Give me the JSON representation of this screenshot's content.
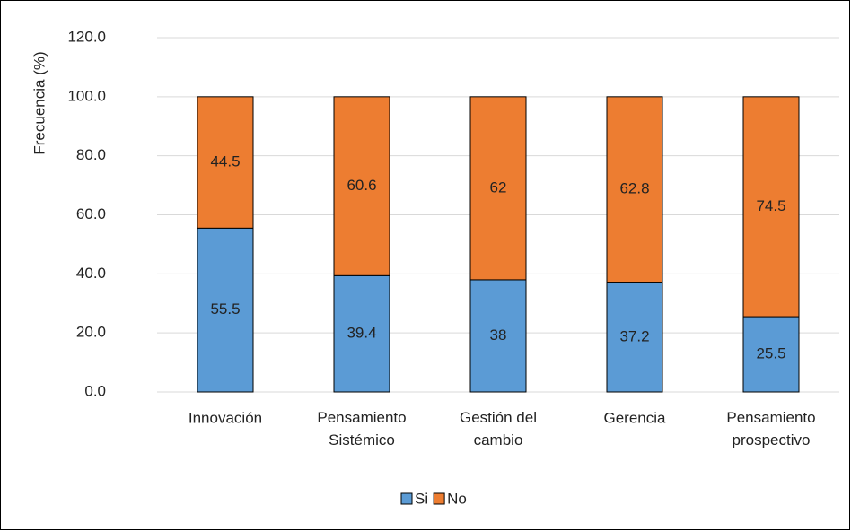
{
  "chart_data": {
    "type": "stacked_bar",
    "y_label": "Frecuencia (%)",
    "categories": [
      "Innovación",
      "Pensamiento Sistémico",
      "Gestión del cambio",
      "Gerencia",
      "Pensamiento prospectivo"
    ],
    "series": [
      {
        "name": "Si",
        "color": "#5b9bd5",
        "values": [
          55.5,
          39.4,
          38.0,
          37.2,
          25.5
        ]
      },
      {
        "name": "No",
        "color": "#ed7d31",
        "values": [
          44.5,
          60.6,
          62.0,
          62.8,
          74.5
        ]
      }
    ],
    "ylim": [
      0,
      120
    ],
    "yticks": [
      {
        "value": 0,
        "label": "0.0"
      },
      {
        "value": 20,
        "label": "20.0"
      },
      {
        "value": 40,
        "label": "40.0"
      },
      {
        "value": 60,
        "label": "60.0"
      },
      {
        "value": 80,
        "label": "80.0"
      },
      {
        "value": 100,
        "label": "100.0"
      },
      {
        "value": 120,
        "label": "120.0"
      }
    ],
    "grid": true,
    "legend": "bottom"
  }
}
